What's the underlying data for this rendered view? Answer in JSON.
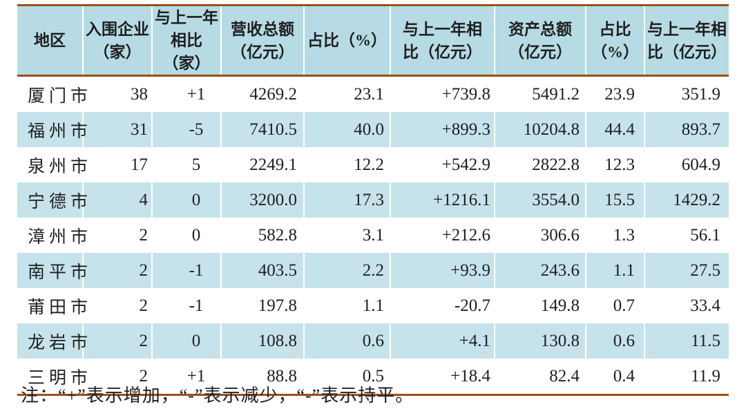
{
  "table": {
    "columns": [
      {
        "full": "地区",
        "line1": "地区",
        "line2": ""
      },
      {
        "full": "入围企业（家）",
        "line1": "入围企业",
        "line2": "（家）"
      },
      {
        "full": "与上一年相比（家）",
        "line1": "与上一年",
        "line2": "相比（家）"
      },
      {
        "full": "营收总额（亿元）",
        "line1": "营收总额",
        "line2": "（亿元）"
      },
      {
        "full": "占比（%）",
        "line1": "占比（%）",
        "line2": ""
      },
      {
        "full": "与上一年相比（亿元）",
        "line1": "与上一年相",
        "line2": "比（亿元）"
      },
      {
        "full": "资产总额（亿元）",
        "line1": "资产总额",
        "line2": "（亿元）"
      },
      {
        "full": "占比（%）",
        "line1": "占比",
        "line2": "（%）"
      },
      {
        "full": "与上一年相比（亿元）",
        "line1": "与上一年相",
        "line2": "比（亿元）"
      }
    ],
    "rows": [
      [
        "厦门市",
        "38",
        "+1",
        "4269.2",
        "23.1",
        "+739.8",
        "5491.2",
        "23.9",
        "351.9"
      ],
      [
        "福州市",
        "31",
        "-5",
        "7410.5",
        "40.0",
        "+899.3",
        "10204.8",
        "44.4",
        "893.7"
      ],
      [
        "泉州市",
        "17",
        "5",
        "2249.1",
        "12.2",
        "+542.9",
        "2822.8",
        "12.3",
        "604.9"
      ],
      [
        "宁德市",
        "4",
        "0",
        "3200.0",
        "17.3",
        "+1216.1",
        "3554.0",
        "15.5",
        "1429.2"
      ],
      [
        "漳州市",
        "2",
        "0",
        "582.8",
        "3.1",
        "+212.6",
        "306.6",
        "1.3",
        "56.1"
      ],
      [
        "南平市",
        "2",
        "-1",
        "403.5",
        "2.2",
        "+93.9",
        "243.6",
        "1.1",
        "27.5"
      ],
      [
        "莆田市",
        "2",
        "-1",
        "197.8",
        "1.1",
        "-20.7",
        "149.8",
        "0.7",
        "33.4"
      ],
      [
        "龙岩市",
        "2",
        "0",
        "108.8",
        "0.6",
        "+4.1",
        "130.8",
        "0.6",
        "11.5"
      ],
      [
        "三明市",
        "2",
        "+1",
        "88.8",
        "0.5",
        "+18.4",
        "82.4",
        "0.4",
        "11.9"
      ]
    ]
  },
  "footnote": "注：“+”表示增加，“-”表示减少，“-”表示持平。",
  "colors": {
    "border_brown": "#9c4e18",
    "header_blue": "#b6dbe4",
    "stripe_blue": "#c6e3ec",
    "text": "#1e1e1e",
    "background": "#ffffff"
  }
}
